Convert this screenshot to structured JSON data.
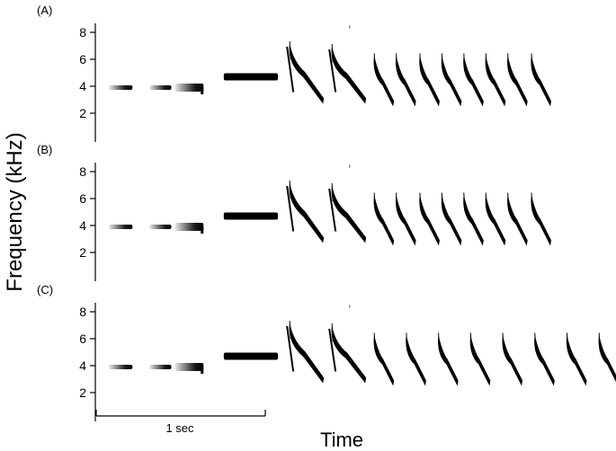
{
  "chart_data": {
    "type": "spectrogram",
    "ylabel": "Frequency (kHz)",
    "xlabel": "Time",
    "scale_bar_label": "1 sec",
    "scale_bar_seconds": 1,
    "yticks": [
      2,
      4,
      6,
      8
    ],
    "panels": [
      {
        "label": "(A)",
        "tones": [
          {
            "t_start": 0.0,
            "t_end": 0.14,
            "f_khz": 3.9
          },
          {
            "t_start": 0.24,
            "t_end": 0.37,
            "f_khz": 3.9
          },
          {
            "t_start": 0.39,
            "t_end": 0.56,
            "f_khz": 3.9
          },
          {
            "t_start": 0.68,
            "t_end": 1.0,
            "f_khz": 4.7
          }
        ],
        "downsweeps": [
          {
            "t": 1.07,
            "f_high": 7.2,
            "f_low": 2.9
          },
          {
            "t": 1.32,
            "f_high": 7.0,
            "f_low": 2.9
          },
          {
            "t": 1.57,
            "f_high": 6.3,
            "f_low": 2.7
          },
          {
            "t": 1.7,
            "f_high": 6.3,
            "f_low": 2.7
          },
          {
            "t": 1.84,
            "f_high": 6.3,
            "f_low": 2.7
          },
          {
            "t": 1.97,
            "f_high": 6.3,
            "f_low": 2.7
          },
          {
            "t": 2.1,
            "f_high": 6.3,
            "f_low": 2.7
          },
          {
            "t": 2.23,
            "f_high": 6.3,
            "f_low": 2.7
          },
          {
            "t": 2.36,
            "f_high": 6.3,
            "f_low": 2.7
          },
          {
            "t": 2.5,
            "f_high": 6.3,
            "f_low": 2.7
          }
        ]
      },
      {
        "label": "(B)",
        "tones": [
          {
            "t_start": 0.0,
            "t_end": 0.14,
            "f_khz": 3.9
          },
          {
            "t_start": 0.24,
            "t_end": 0.37,
            "f_khz": 3.9
          },
          {
            "t_start": 0.39,
            "t_end": 0.56,
            "f_khz": 3.9
          },
          {
            "t_start": 0.68,
            "t_end": 1.0,
            "f_khz": 4.7
          }
        ],
        "downsweeps": [
          {
            "t": 1.07,
            "f_high": 7.2,
            "f_low": 2.9
          },
          {
            "t": 1.32,
            "f_high": 7.0,
            "f_low": 2.9
          },
          {
            "t": 1.57,
            "f_high": 6.3,
            "f_low": 2.7
          },
          {
            "t": 1.7,
            "f_high": 6.3,
            "f_low": 2.7
          },
          {
            "t": 1.84,
            "f_high": 6.3,
            "f_low": 2.7
          },
          {
            "t": 1.97,
            "f_high": 6.3,
            "f_low": 2.7
          },
          {
            "t": 2.1,
            "f_high": 6.3,
            "f_low": 2.7
          },
          {
            "t": 2.23,
            "f_high": 6.3,
            "f_low": 2.7
          },
          {
            "t": 2.36,
            "f_high": 6.3,
            "f_low": 2.7
          },
          {
            "t": 2.5,
            "f_high": 6.3,
            "f_low": 2.7
          }
        ]
      },
      {
        "label": "(C)",
        "tones": [
          {
            "t_start": 0.0,
            "t_end": 0.14,
            "f_khz": 3.9
          },
          {
            "t_start": 0.24,
            "t_end": 0.37,
            "f_khz": 3.9
          },
          {
            "t_start": 0.39,
            "t_end": 0.56,
            "f_khz": 3.9
          },
          {
            "t_start": 0.68,
            "t_end": 1.0,
            "f_khz": 4.7
          }
        ],
        "downsweeps": [
          {
            "t": 1.07,
            "f_high": 7.2,
            "f_low": 2.9
          },
          {
            "t": 1.32,
            "f_high": 7.0,
            "f_low": 2.9
          },
          {
            "t": 1.57,
            "f_high": 6.3,
            "f_low": 2.7
          },
          {
            "t": 1.76,
            "f_high": 6.3,
            "f_low": 2.7
          },
          {
            "t": 1.95,
            "f_high": 6.3,
            "f_low": 2.7
          },
          {
            "t": 2.14,
            "f_high": 6.3,
            "f_low": 2.7
          },
          {
            "t": 2.33,
            "f_high": 6.3,
            "f_low": 2.7
          },
          {
            "t": 2.52,
            "f_high": 6.3,
            "f_low": 2.7
          },
          {
            "t": 2.71,
            "f_high": 6.3,
            "f_low": 2.7
          },
          {
            "t": 2.9,
            "f_high": 6.3,
            "f_low": 2.7
          }
        ]
      }
    ]
  },
  "colors": {
    "ink": "#000000",
    "background": "#ffffff"
  }
}
